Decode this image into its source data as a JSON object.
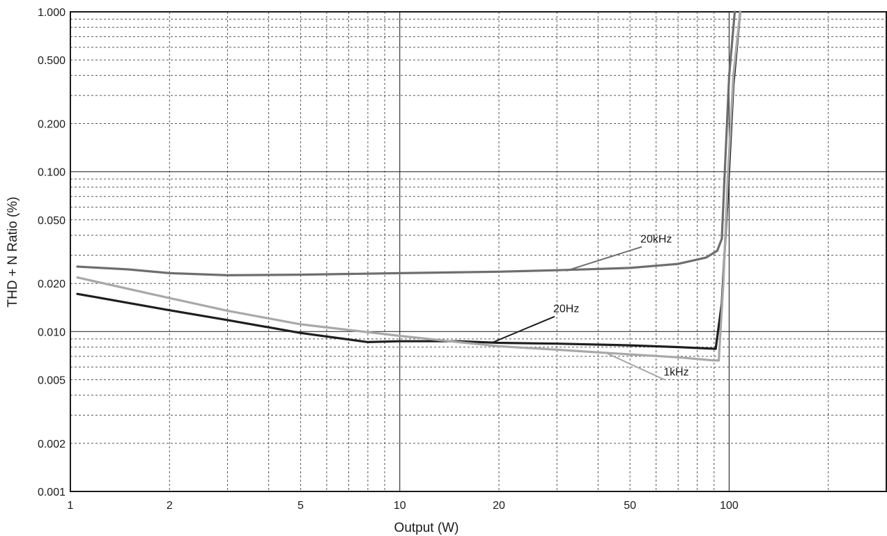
{
  "chart_data": {
    "type": "line",
    "title": "",
    "xlabel": "Output (W)",
    "ylabel": "THD + N Ratio (%)",
    "xscale": "log",
    "yscale": "log",
    "xlim": [
      1,
      300
    ],
    "ylim": [
      0.001,
      1.0
    ],
    "grid": true,
    "legend": "none",
    "x_ticks": [
      {
        "value": 1,
        "label": "1"
      },
      {
        "value": 2,
        "label": "2"
      },
      {
        "value": 5,
        "label": "5"
      },
      {
        "value": 10,
        "label": "10"
      },
      {
        "value": 20,
        "label": "20"
      },
      {
        "value": 50,
        "label": "50"
      },
      {
        "value": 100,
        "label": "100"
      }
    ],
    "y_ticks": [
      {
        "value": 0.001,
        "label": "0.001"
      },
      {
        "value": 0.002,
        "label": "0.002"
      },
      {
        "value": 0.005,
        "label": "0.005"
      },
      {
        "value": 0.01,
        "label": "0.010"
      },
      {
        "value": 0.02,
        "label": "0.020"
      },
      {
        "value": 0.05,
        "label": "0.050"
      },
      {
        "value": 0.1,
        "label": "0.100"
      },
      {
        "value": 0.2,
        "label": "0.200"
      },
      {
        "value": 0.5,
        "label": "0.500"
      },
      {
        "value": 1.0,
        "label": "1.000"
      }
    ],
    "series": [
      {
        "name": "20kHz",
        "color": "#6e6e6e",
        "x": [
          1.05,
          1.5,
          2,
          3,
          5,
          10,
          20,
          30,
          50,
          70,
          85,
          92,
          95,
          97,
          100,
          104
        ],
        "y": [
          0.0255,
          0.0245,
          0.0232,
          0.0225,
          0.0227,
          0.0232,
          0.0237,
          0.0242,
          0.025,
          0.0265,
          0.029,
          0.032,
          0.038,
          0.1,
          0.4,
          1.0
        ]
      },
      {
        "name": "20Hz",
        "color": "#1e1e1e",
        "x": [
          1.05,
          2,
          3,
          5,
          8,
          10,
          15,
          20,
          30,
          50,
          70,
          91,
          95,
          99,
          103,
          108
        ],
        "y": [
          0.0172,
          0.0136,
          0.0118,
          0.0098,
          0.0086,
          0.0087,
          0.0087,
          0.0085,
          0.0084,
          0.0082,
          0.008,
          0.0078,
          0.015,
          0.07,
          0.35,
          1.0
        ]
      },
      {
        "name": "1kHz",
        "color": "#a8a8a8",
        "x": [
          1.05,
          2,
          3,
          5,
          10,
          15,
          20,
          30,
          50,
          70,
          90,
          93,
          96,
          99,
          103,
          108
        ],
        "y": [
          0.0218,
          0.0162,
          0.0135,
          0.0111,
          0.0094,
          0.0086,
          0.0081,
          0.0077,
          0.0072,
          0.0069,
          0.0066,
          0.0066,
          0.02,
          0.09,
          0.4,
          1.0
        ]
      }
    ],
    "annotations": [
      {
        "text": "20kHz",
        "series": "20kHz",
        "at": [
          32,
          0.024
        ],
        "text_at": [
          57,
          0.036
        ]
      },
      {
        "text": "20Hz",
        "series": "20Hz",
        "at": [
          19,
          0.0085
        ],
        "text_at": [
          31,
          0.0132
        ]
      },
      {
        "text": "1kHz",
        "series": "1kHz",
        "at": [
          42,
          0.0074
        ],
        "text_at": [
          67,
          0.0053
        ]
      }
    ]
  }
}
